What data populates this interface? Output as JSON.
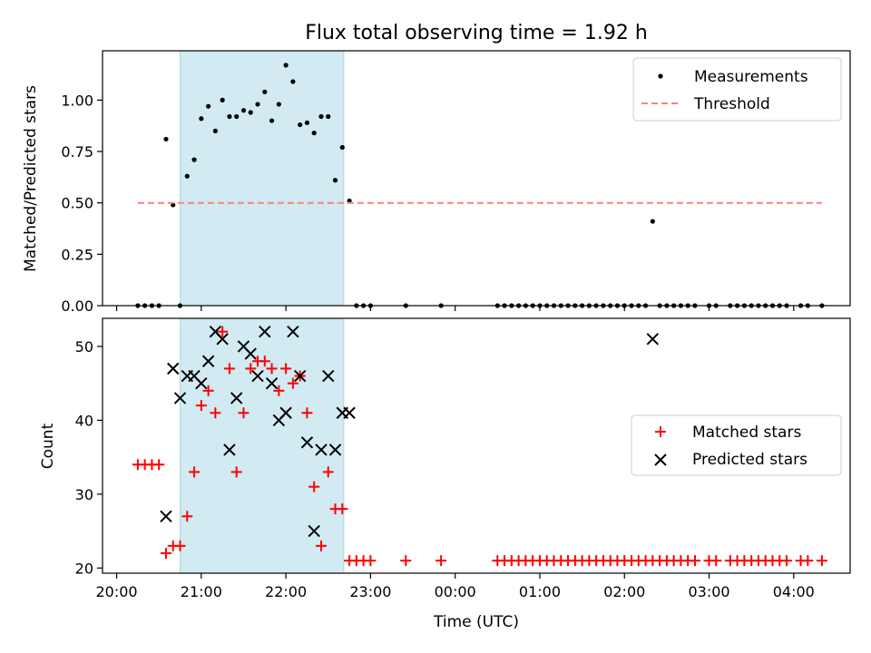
{
  "chart_data": [
    {
      "type": "scatter",
      "title": "Flux total observing time = 1.92 h",
      "xlabel": "",
      "ylabel": "Matched/Predicted stars",
      "ylim": [
        0,
        1.24
      ],
      "yticks": [
        "0.00",
        "0.25",
        "0.50",
        "0.75",
        "1.00"
      ],
      "ytick_values": [
        0,
        0.25,
        0.5,
        0.75,
        1.0
      ],
      "legend_position": "top-right",
      "highlight_span": {
        "start": "20:45",
        "end": "22:41",
        "color": "#add8e6"
      },
      "series": [
        {
          "name": "Measurements",
          "color": "#000000",
          "marker": "dot",
          "x": [
            "20:15",
            "20:20",
            "20:25",
            "20:30",
            "20:35",
            "20:40",
            "20:45",
            "20:50",
            "20:55",
            "21:00",
            "21:05",
            "21:10",
            "21:15",
            "21:20",
            "21:25",
            "21:30",
            "21:35",
            "21:40",
            "21:45",
            "21:50",
            "21:55",
            "22:00",
            "22:05",
            "22:10",
            "22:15",
            "22:20",
            "22:25",
            "22:30",
            "22:35",
            "22:40",
            "22:45",
            "22:50",
            "22:55",
            "23:00",
            "23:25",
            "23:50",
            "00:30",
            "00:35",
            "00:40",
            "00:45",
            "00:50",
            "00:55",
            "01:00",
            "01:05",
            "01:10",
            "01:15",
            "01:20",
            "01:25",
            "01:30",
            "01:35",
            "01:40",
            "01:45",
            "01:50",
            "01:55",
            "02:00",
            "02:05",
            "02:10",
            "02:15",
            "02:20",
            "02:25",
            "02:30",
            "02:35",
            "02:40",
            "02:45",
            "02:50",
            "03:00",
            "03:05",
            "03:15",
            "03:20",
            "03:25",
            "03:30",
            "03:35",
            "03:40",
            "03:45",
            "03:50",
            "03:55",
            "04:05",
            "04:10",
            "04:20"
          ],
          "y": [
            0,
            0,
            0,
            0,
            0.81,
            0.49,
            0,
            0.63,
            0.71,
            0.91,
            0.97,
            0.85,
            1.0,
            0.92,
            0.92,
            0.95,
            0.94,
            0.98,
            1.04,
            0.9,
            0.98,
            1.17,
            1.09,
            0.88,
            0.89,
            0.84,
            0.92,
            0.92,
            0.61,
            0.77,
            0.51,
            0,
            0,
            0,
            0,
            0,
            0,
            0,
            0,
            0,
            0,
            0,
            0,
            0,
            0,
            0,
            0,
            0,
            0,
            0,
            0,
            0,
            0,
            0,
            0,
            0,
            0,
            0,
            0.41,
            0,
            0,
            0,
            0,
            0,
            0,
            0,
            0,
            0,
            0,
            0,
            0,
            0,
            0,
            0,
            0,
            0,
            0,
            0,
            0
          ]
        },
        {
          "name": "Threshold",
          "color": "#ff7f7f",
          "line_style": "dashed",
          "x": [
            "20:15",
            "04:20"
          ],
          "y": [
            0.5,
            0.5
          ]
        }
      ]
    },
    {
      "type": "scatter",
      "title": "",
      "xlabel": "Time (UTC)",
      "ylabel": "Count",
      "ylim": [
        19.3,
        53.8
      ],
      "yticks": [
        "20",
        "30",
        "40",
        "50"
      ],
      "ytick_values": [
        20,
        30,
        40,
        50
      ],
      "xticks": [
        "20:00",
        "21:00",
        "22:00",
        "23:00",
        "00:00",
        "01:00",
        "02:00",
        "03:00",
        "04:00"
      ],
      "xtick_values": [
        "20:00",
        "21:00",
        "22:00",
        "23:00",
        "00:00",
        "01:00",
        "02:00",
        "03:00",
        "04:00"
      ],
      "xlim": [
        "19:50",
        "04:40"
      ],
      "legend_position": "center-right",
      "highlight_span": {
        "start": "20:45",
        "end": "22:41",
        "color": "#add8e6"
      },
      "series": [
        {
          "name": "Matched stars",
          "color": "#ff0000",
          "marker": "plus",
          "x": [
            "20:15",
            "20:20",
            "20:25",
            "20:30",
            "20:35",
            "20:40",
            "20:45",
            "20:50",
            "20:55",
            "21:00",
            "21:05",
            "21:10",
            "21:15",
            "21:20",
            "21:25",
            "21:30",
            "21:35",
            "21:40",
            "21:45",
            "21:50",
            "21:55",
            "22:00",
            "22:05",
            "22:10",
            "22:15",
            "22:20",
            "22:25",
            "22:30",
            "22:35",
            "22:40",
            "22:45",
            "22:50",
            "22:55",
            "23:00",
            "23:25",
            "23:50",
            "00:30",
            "00:35",
            "00:40",
            "00:45",
            "00:50",
            "00:55",
            "01:00",
            "01:05",
            "01:10",
            "01:15",
            "01:20",
            "01:25",
            "01:30",
            "01:35",
            "01:40",
            "01:45",
            "01:50",
            "01:55",
            "02:00",
            "02:05",
            "02:10",
            "02:15",
            "02:20",
            "02:25",
            "02:30",
            "02:35",
            "02:40",
            "02:45",
            "02:50",
            "03:00",
            "03:05",
            "03:15",
            "03:20",
            "03:25",
            "03:30",
            "03:35",
            "03:40",
            "03:45",
            "03:50",
            "03:55",
            "04:05",
            "04:10",
            "04:20"
          ],
          "y": [
            34,
            34,
            34,
            34,
            22,
            23,
            23,
            27,
            33,
            42,
            44,
            41,
            52,
            47,
            33,
            41,
            47,
            48,
            48,
            47,
            44,
            47,
            45,
            46,
            41,
            31,
            23,
            33,
            28,
            28,
            21,
            21,
            21,
            21,
            21,
            21,
            21,
            21,
            21,
            21,
            21,
            21,
            21,
            21,
            21,
            21,
            21,
            21,
            21,
            21,
            21,
            21,
            21,
            21,
            21,
            21,
            21,
            21,
            21,
            21,
            21,
            21,
            21,
            21,
            21,
            21,
            21,
            21,
            21,
            21,
            21,
            21,
            21,
            21,
            21,
            21,
            21,
            21,
            21
          ]
        },
        {
          "name": "Predicted stars",
          "color": "#000000",
          "marker": "x",
          "x": [
            "20:35",
            "20:40",
            "20:45",
            "20:50",
            "20:55",
            "21:00",
            "21:05",
            "21:10",
            "21:15",
            "21:20",
            "21:25",
            "21:30",
            "21:35",
            "21:40",
            "21:45",
            "21:50",
            "21:55",
            "22:00",
            "22:05",
            "22:10",
            "22:15",
            "22:20",
            "22:25",
            "22:30",
            "22:35",
            "22:40",
            "22:45",
            "02:20"
          ],
          "y": [
            27,
            47,
            43,
            46,
            46,
            45,
            48,
            52,
            51,
            36,
            43,
            50,
            49,
            46,
            52,
            45,
            40,
            41,
            52,
            46,
            37,
            25,
            36,
            46,
            36,
            41,
            41,
            51
          ]
        }
      ]
    }
  ]
}
